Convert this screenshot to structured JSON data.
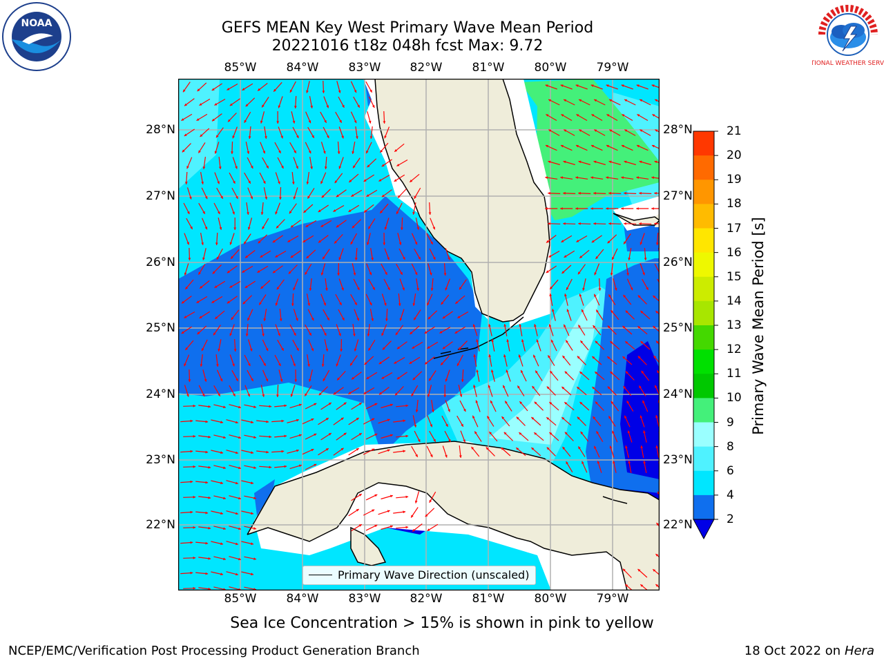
{
  "title": {
    "line1": "GEFS MEAN Key West Primary Wave Mean Period",
    "line2": "20221016 t18z 048h fcst   Max: 9.72"
  },
  "axes": {
    "lon_labels": [
      "85°W",
      "84°W",
      "83°W",
      "82°W",
      "81°W",
      "80°W",
      "79°W"
    ],
    "lat_labels": [
      "28°N",
      "27°N",
      "26°N",
      "25°N",
      "24°N",
      "23°N",
      "22°N"
    ]
  },
  "colorbar": {
    "label": "Primary Wave Mean Period [s]",
    "ticks": [
      "2",
      "4",
      "6",
      "8",
      "9",
      "10",
      "11",
      "12",
      "13",
      "14",
      "15",
      "16",
      "17",
      "18",
      "19",
      "20",
      "21"
    ],
    "colors": [
      "#0f6fee",
      "#00e6ff",
      "#4ff2ff",
      "#9affff",
      "#44f07a",
      "#00c800",
      "#00e000",
      "#44d800",
      "#a8e600",
      "#ccec00",
      "#eef800",
      "#ffe600",
      "#ffbb00",
      "#ff9600",
      "#ff6a00",
      "#ff3800",
      "#ff0000"
    ],
    "under_color": "#0000e6"
  },
  "legend": {
    "label": "Primary Wave Direction (unscaled)"
  },
  "ice_note": "Sea Ice Concentration > 15% is shown in pink to yellow",
  "footer": {
    "left": "NCEP/EMC/Verification Post Processing Product Generation Branch",
    "right_date": "18 Oct 2022 on",
    "right_host": "Hera"
  },
  "logos": {
    "noaa": "NOAA",
    "nws": "NATIONAL WEATHER SERVICE"
  },
  "colors": {
    "land": "#efedda",
    "grid": "#b0b0b0",
    "arrow": "#ff0000",
    "c_2_4": "#0f6fee",
    "c_4_6": "#00e6ff",
    "c_6_8": "#4ff2ff",
    "c_8_9": "#9affff",
    "c_9_10": "#44f07a",
    "c_under": "#0000e6"
  }
}
